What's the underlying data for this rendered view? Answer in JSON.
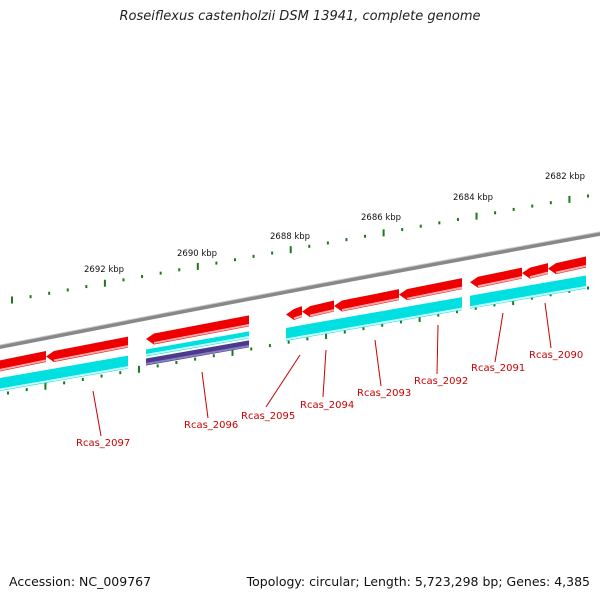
{
  "title": "Roseiflexus castenholzii DSM 13941, complete genome",
  "footer": {
    "accession": "Accession: NC_009767",
    "summary": "Topology: circular; Length: 5,723,298 bp; Genes: 4,385"
  },
  "colors": {
    "backbone": "#888888",
    "cds": "#ee0000",
    "cds_highlight": "#ffaaaa",
    "gene": "#00e0e0",
    "gene_highlight": "#c8ffff",
    "gene_alt": "#4a3a8c",
    "tick": "#1a7a1a",
    "label": "#cc0000"
  },
  "kbp_labels": [
    "2682 kbp",
    "2684 kbp",
    "2686 kbp",
    "2688 kbp",
    "2690 kbp",
    "2692 kbp"
  ],
  "genes": [
    {
      "name": "Rcas_2090"
    },
    {
      "name": "Rcas_2091"
    },
    {
      "name": "Rcas_2092"
    },
    {
      "name": "Rcas_2093"
    },
    {
      "name": "Rcas_2094"
    },
    {
      "name": "Rcas_2095"
    },
    {
      "name": "Rcas_2096"
    },
    {
      "name": "Rcas_2097"
    }
  ]
}
